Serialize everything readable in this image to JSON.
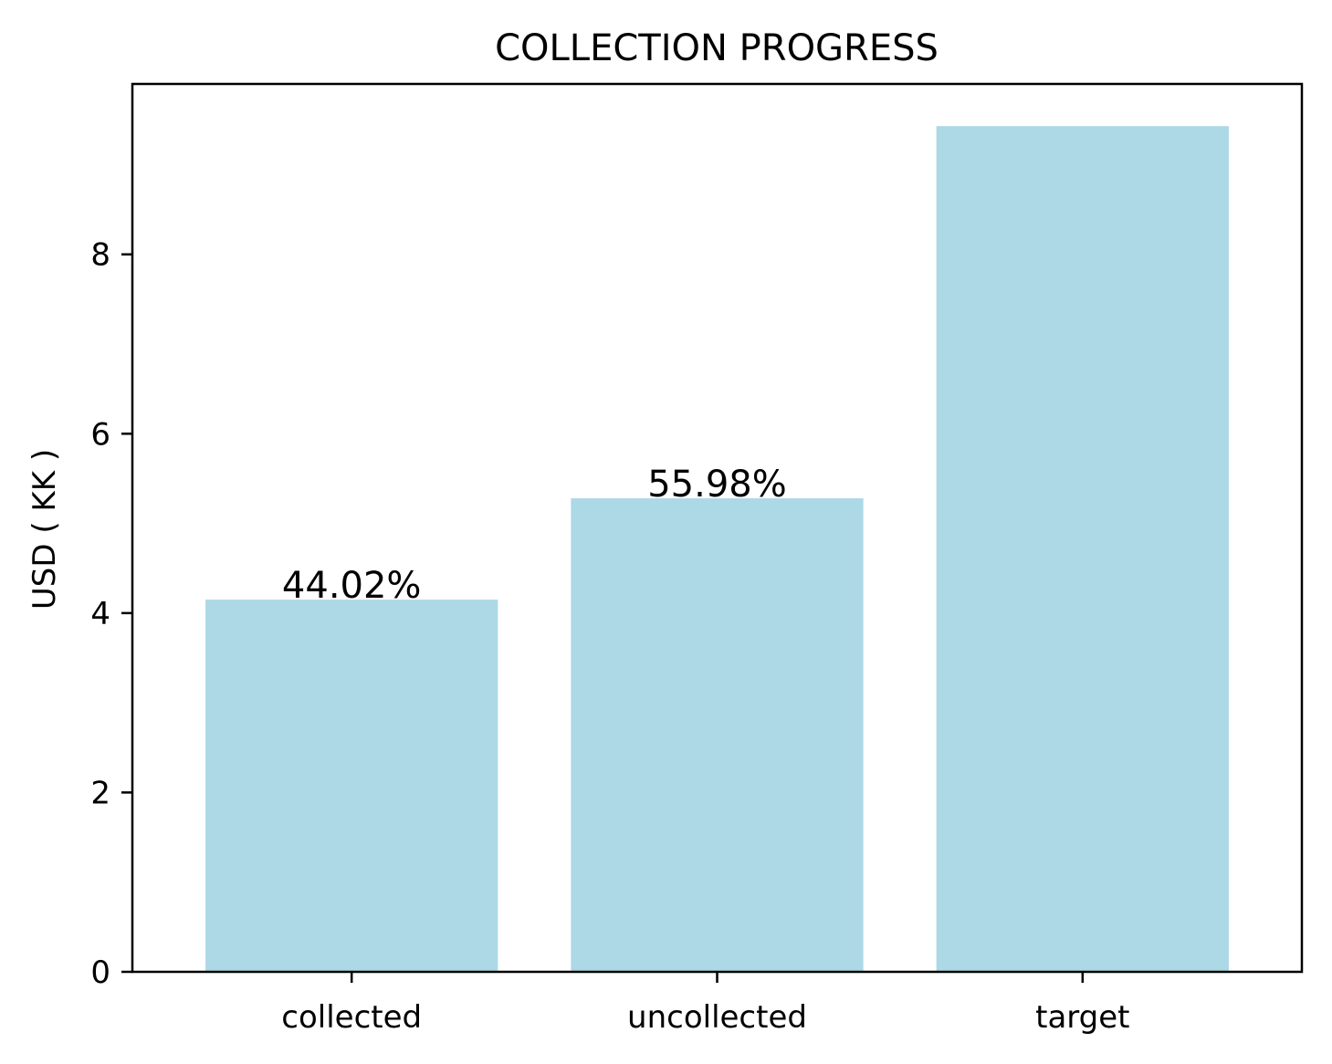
{
  "chart_data": {
    "type": "bar",
    "title": "COLLECTION PROGRESS",
    "xlabel": "",
    "ylabel": "USD ( KK )",
    "categories": [
      "collected",
      "uncollected",
      "target"
    ],
    "values": [
      4.15,
      5.28,
      9.43
    ],
    "data_labels": [
      "44.02%",
      "55.98%",
      ""
    ],
    "ylim": [
      0,
      9.9
    ],
    "yticks": [
      0,
      2,
      4,
      6,
      8
    ],
    "ytick_labels": [
      "0",
      "2",
      "4",
      "6",
      "8"
    ],
    "grid": false,
    "bar_color": "#add8e6"
  }
}
